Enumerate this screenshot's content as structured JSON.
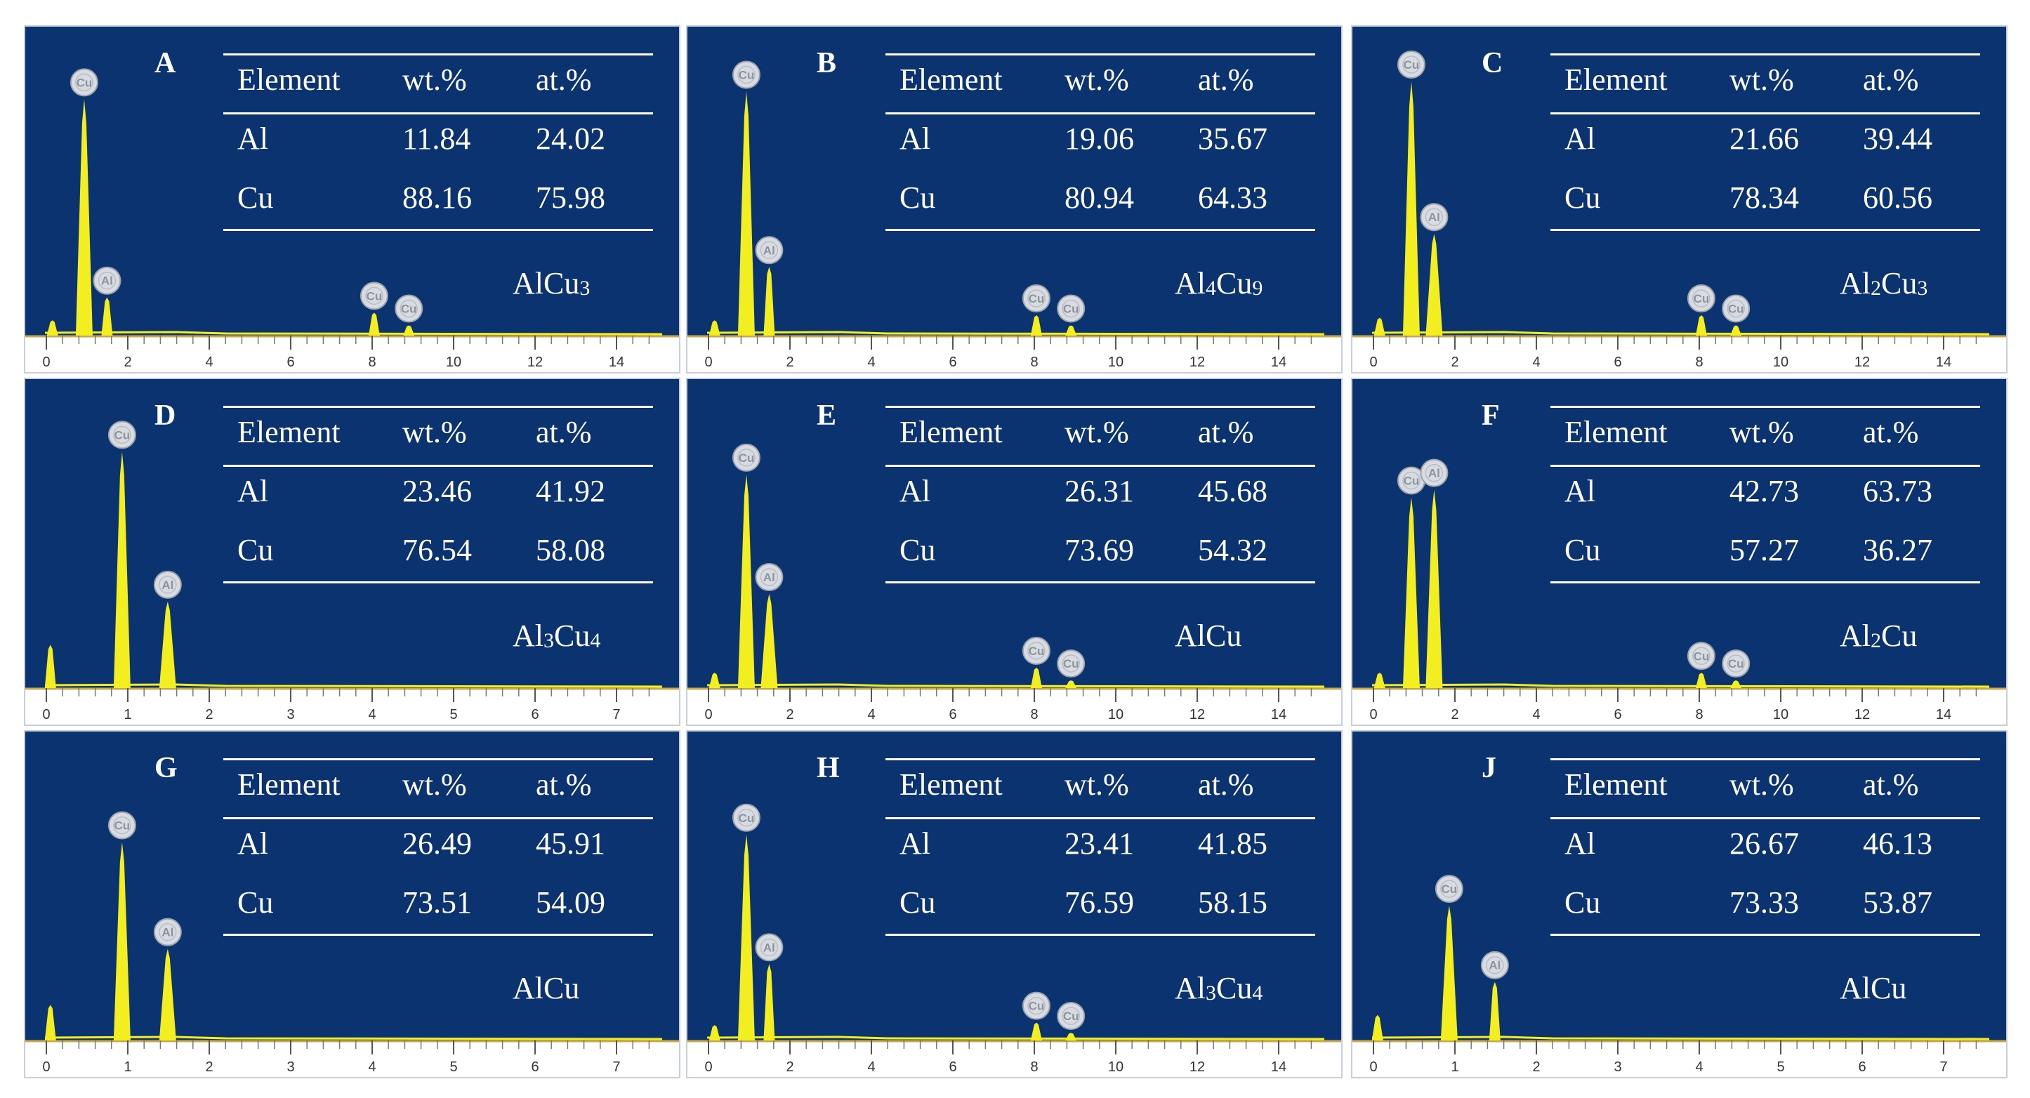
{
  "chart_data": [
    {
      "type": "bar",
      "panel_label": "A",
      "table_headers": [
        "Element",
        "wt.%",
        "at.%"
      ],
      "rows": [
        [
          "Al",
          "11.84",
          "24.02"
        ],
        [
          "Cu",
          "88.16",
          "75.98"
        ]
      ],
      "phase": [
        "Al",
        "Cu",
        "3"
      ],
      "xlim": [
        0,
        15
      ],
      "ticks": [
        "0",
        "2",
        "4",
        "6",
        "8",
        "10",
        "12",
        "14"
      ],
      "peak_markers": [
        "Cu",
        "Al",
        "Cu",
        "Cu"
      ],
      "peaks": [
        {
          "x": 0.15,
          "h": 0.06
        },
        {
          "x": 0.93,
          "h": 0.93
        },
        {
          "x": 1.49,
          "h": 0.15
        },
        {
          "x": 8.05,
          "h": 0.09
        },
        {
          "x": 8.9,
          "h": 0.04
        }
      ],
      "bar_color": "#f2ee1f"
    },
    {
      "type": "bar",
      "panel_label": "B",
      "table_headers": [
        "Element",
        "wt.%",
        "at.%"
      ],
      "rows": [
        [
          "Al",
          "19.06",
          "35.67"
        ],
        [
          "Cu",
          "80.94",
          "64.33"
        ]
      ],
      "phase": [
        "Al",
        "4",
        "Cu",
        "9"
      ],
      "xlim": [
        0,
        15
      ],
      "ticks": [
        "0",
        "2",
        "4",
        "6",
        "8",
        "10",
        "12",
        "14"
      ],
      "peak_markers": [
        "Cu",
        "Al",
        "Cu",
        "Cu"
      ],
      "peaks": [
        {
          "x": 0.15,
          "h": 0.06
        },
        {
          "x": 0.93,
          "h": 0.96
        },
        {
          "x": 1.49,
          "h": 0.27
        },
        {
          "x": 8.05,
          "h": 0.08
        },
        {
          "x": 8.9,
          "h": 0.04
        }
      ],
      "bar_color": "#f2ee1f"
    },
    {
      "type": "bar",
      "panel_label": "C",
      "table_headers": [
        "Element",
        "wt.%",
        "at.%"
      ],
      "rows": [
        [
          "Al",
          "21.66",
          "39.44"
        ],
        [
          "Cu",
          "78.34",
          "60.56"
        ]
      ],
      "phase": [
        "Al",
        "2",
        "Cu",
        "3"
      ],
      "xlim": [
        0,
        15
      ],
      "ticks": [
        "0",
        "2",
        "4",
        "6",
        "8",
        "10",
        "12",
        "14"
      ],
      "peak_markers": [
        "Cu",
        "Al",
        "Cu",
        "Cu"
      ],
      "peaks": [
        {
          "x": 0.15,
          "h": 0.07
        },
        {
          "x": 0.93,
          "h": 1.0
        },
        {
          "x": 1.49,
          "h": 0.4
        },
        {
          "x": 8.05,
          "h": 0.08
        },
        {
          "x": 8.9,
          "h": 0.04
        }
      ],
      "bar_color": "#f2ee1f"
    },
    {
      "type": "bar",
      "panel_label": "D",
      "table_headers": [
        "Element",
        "wt.%",
        "at.%"
      ],
      "rows": [
        [
          "Al",
          "23.46",
          "41.92"
        ],
        [
          "Cu",
          "76.54",
          "58.08"
        ]
      ],
      "phase": [
        "Al",
        "3",
        "Cu",
        "4"
      ],
      "xlim": [
        0,
        7.5
      ],
      "ticks": [
        "0",
        "1",
        "2",
        "3",
        "4",
        "5",
        "6",
        "7"
      ],
      "peak_markers": [
        "Cu",
        "Al"
      ],
      "peaks": [
        {
          "x": 0.05,
          "h": 0.17
        },
        {
          "x": 0.93,
          "h": 0.93
        },
        {
          "x": 1.49,
          "h": 0.34
        }
      ],
      "bar_color": "#f2ee1f"
    },
    {
      "type": "bar",
      "panel_label": "E",
      "table_headers": [
        "Element",
        "wt.%",
        "at.%"
      ],
      "rows": [
        [
          "Al",
          "26.31",
          "45.68"
        ],
        [
          "Cu",
          "73.69",
          "54.32"
        ]
      ],
      "phase": [
        "Al",
        "Cu"
      ],
      "xlim": [
        0,
        15
      ],
      "ticks": [
        "0",
        "2",
        "4",
        "6",
        "8",
        "10",
        "12",
        "14"
      ],
      "peak_markers": [
        "Cu",
        "Al",
        "Cu",
        "Cu"
      ],
      "peaks": [
        {
          "x": 0.15,
          "h": 0.06
        },
        {
          "x": 0.93,
          "h": 0.84
        },
        {
          "x": 1.49,
          "h": 0.37
        },
        {
          "x": 8.05,
          "h": 0.08
        },
        {
          "x": 8.9,
          "h": 0.03
        }
      ],
      "bar_color": "#f2ee1f"
    },
    {
      "type": "bar",
      "panel_label": "F",
      "table_headers": [
        "Element",
        "wt.%",
        "at.%"
      ],
      "rows": [
        [
          "Al",
          "42.73",
          "63.73"
        ],
        [
          "Cu",
          "57.27",
          "36.27"
        ]
      ],
      "phase": [
        "Al",
        "2",
        "Cu"
      ],
      "xlim": [
        0,
        15
      ],
      "ticks": [
        "0",
        "2",
        "4",
        "6",
        "8",
        "10",
        "12",
        "14"
      ],
      "peak_markers": [
        "Cu",
        "Al",
        "Cu",
        "Cu"
      ],
      "peaks": [
        {
          "x": 0.15,
          "h": 0.06
        },
        {
          "x": 0.93,
          "h": 0.75
        },
        {
          "x": 1.49,
          "h": 0.78
        },
        {
          "x": 8.05,
          "h": 0.06
        },
        {
          "x": 8.9,
          "h": 0.03
        }
      ],
      "bar_color": "#f2ee1f"
    },
    {
      "type": "bar",
      "panel_label": "G",
      "table_headers": [
        "Element",
        "wt.%",
        "at.%"
      ],
      "rows": [
        [
          "Al",
          "26.49",
          "45.91"
        ],
        [
          "Cu",
          "73.51",
          "54.09"
        ]
      ],
      "phase": [
        "Al",
        "Cu"
      ],
      "xlim": [
        0,
        7.5
      ],
      "ticks": [
        "0",
        "1",
        "2",
        "3",
        "4",
        "5",
        "6",
        "7"
      ],
      "peak_markers": [
        "Cu",
        "Al"
      ],
      "peaks": [
        {
          "x": 0.05,
          "h": 0.14
        },
        {
          "x": 0.93,
          "h": 0.78
        },
        {
          "x": 1.49,
          "h": 0.36
        }
      ],
      "bar_color": "#f2ee1f"
    },
    {
      "type": "bar",
      "panel_label": "H",
      "table_headers": [
        "Element",
        "wt.%",
        "at.%"
      ],
      "rows": [
        [
          "Al",
          "23.41",
          "41.85"
        ],
        [
          "Cu",
          "76.59",
          "58.15"
        ]
      ],
      "phase": [
        "Al",
        "3",
        "Cu",
        "4"
      ],
      "xlim": [
        0,
        15
      ],
      "ticks": [
        "0",
        "2",
        "4",
        "6",
        "8",
        "10",
        "12",
        "14"
      ],
      "peak_markers": [
        "Cu",
        "Al",
        "Cu",
        "Cu"
      ],
      "peaks": [
        {
          "x": 0.15,
          "h": 0.06
        },
        {
          "x": 0.93,
          "h": 0.81
        },
        {
          "x": 1.49,
          "h": 0.3
        },
        {
          "x": 8.05,
          "h": 0.07
        },
        {
          "x": 8.9,
          "h": 0.03
        }
      ],
      "bar_color": "#f2ee1f"
    },
    {
      "type": "bar",
      "panel_label": "J",
      "table_headers": [
        "Element",
        "wt.%",
        "at.%"
      ],
      "rows": [
        [
          "Al",
          "26.67",
          "46.13"
        ],
        [
          "Cu",
          "73.33",
          "53.87"
        ]
      ],
      "phase": [
        "Al",
        "Cu"
      ],
      "xlim": [
        0,
        7.5
      ],
      "ticks": [
        "0",
        "1",
        "2",
        "3",
        "4",
        "5",
        "6",
        "7"
      ],
      "peak_markers": [
        "Cu",
        "Al"
      ],
      "peaks": [
        {
          "x": 0.05,
          "h": 0.1
        },
        {
          "x": 0.93,
          "h": 0.53
        },
        {
          "x": 1.49,
          "h": 0.23
        }
      ],
      "bar_color": "#f2ee1f"
    }
  ]
}
